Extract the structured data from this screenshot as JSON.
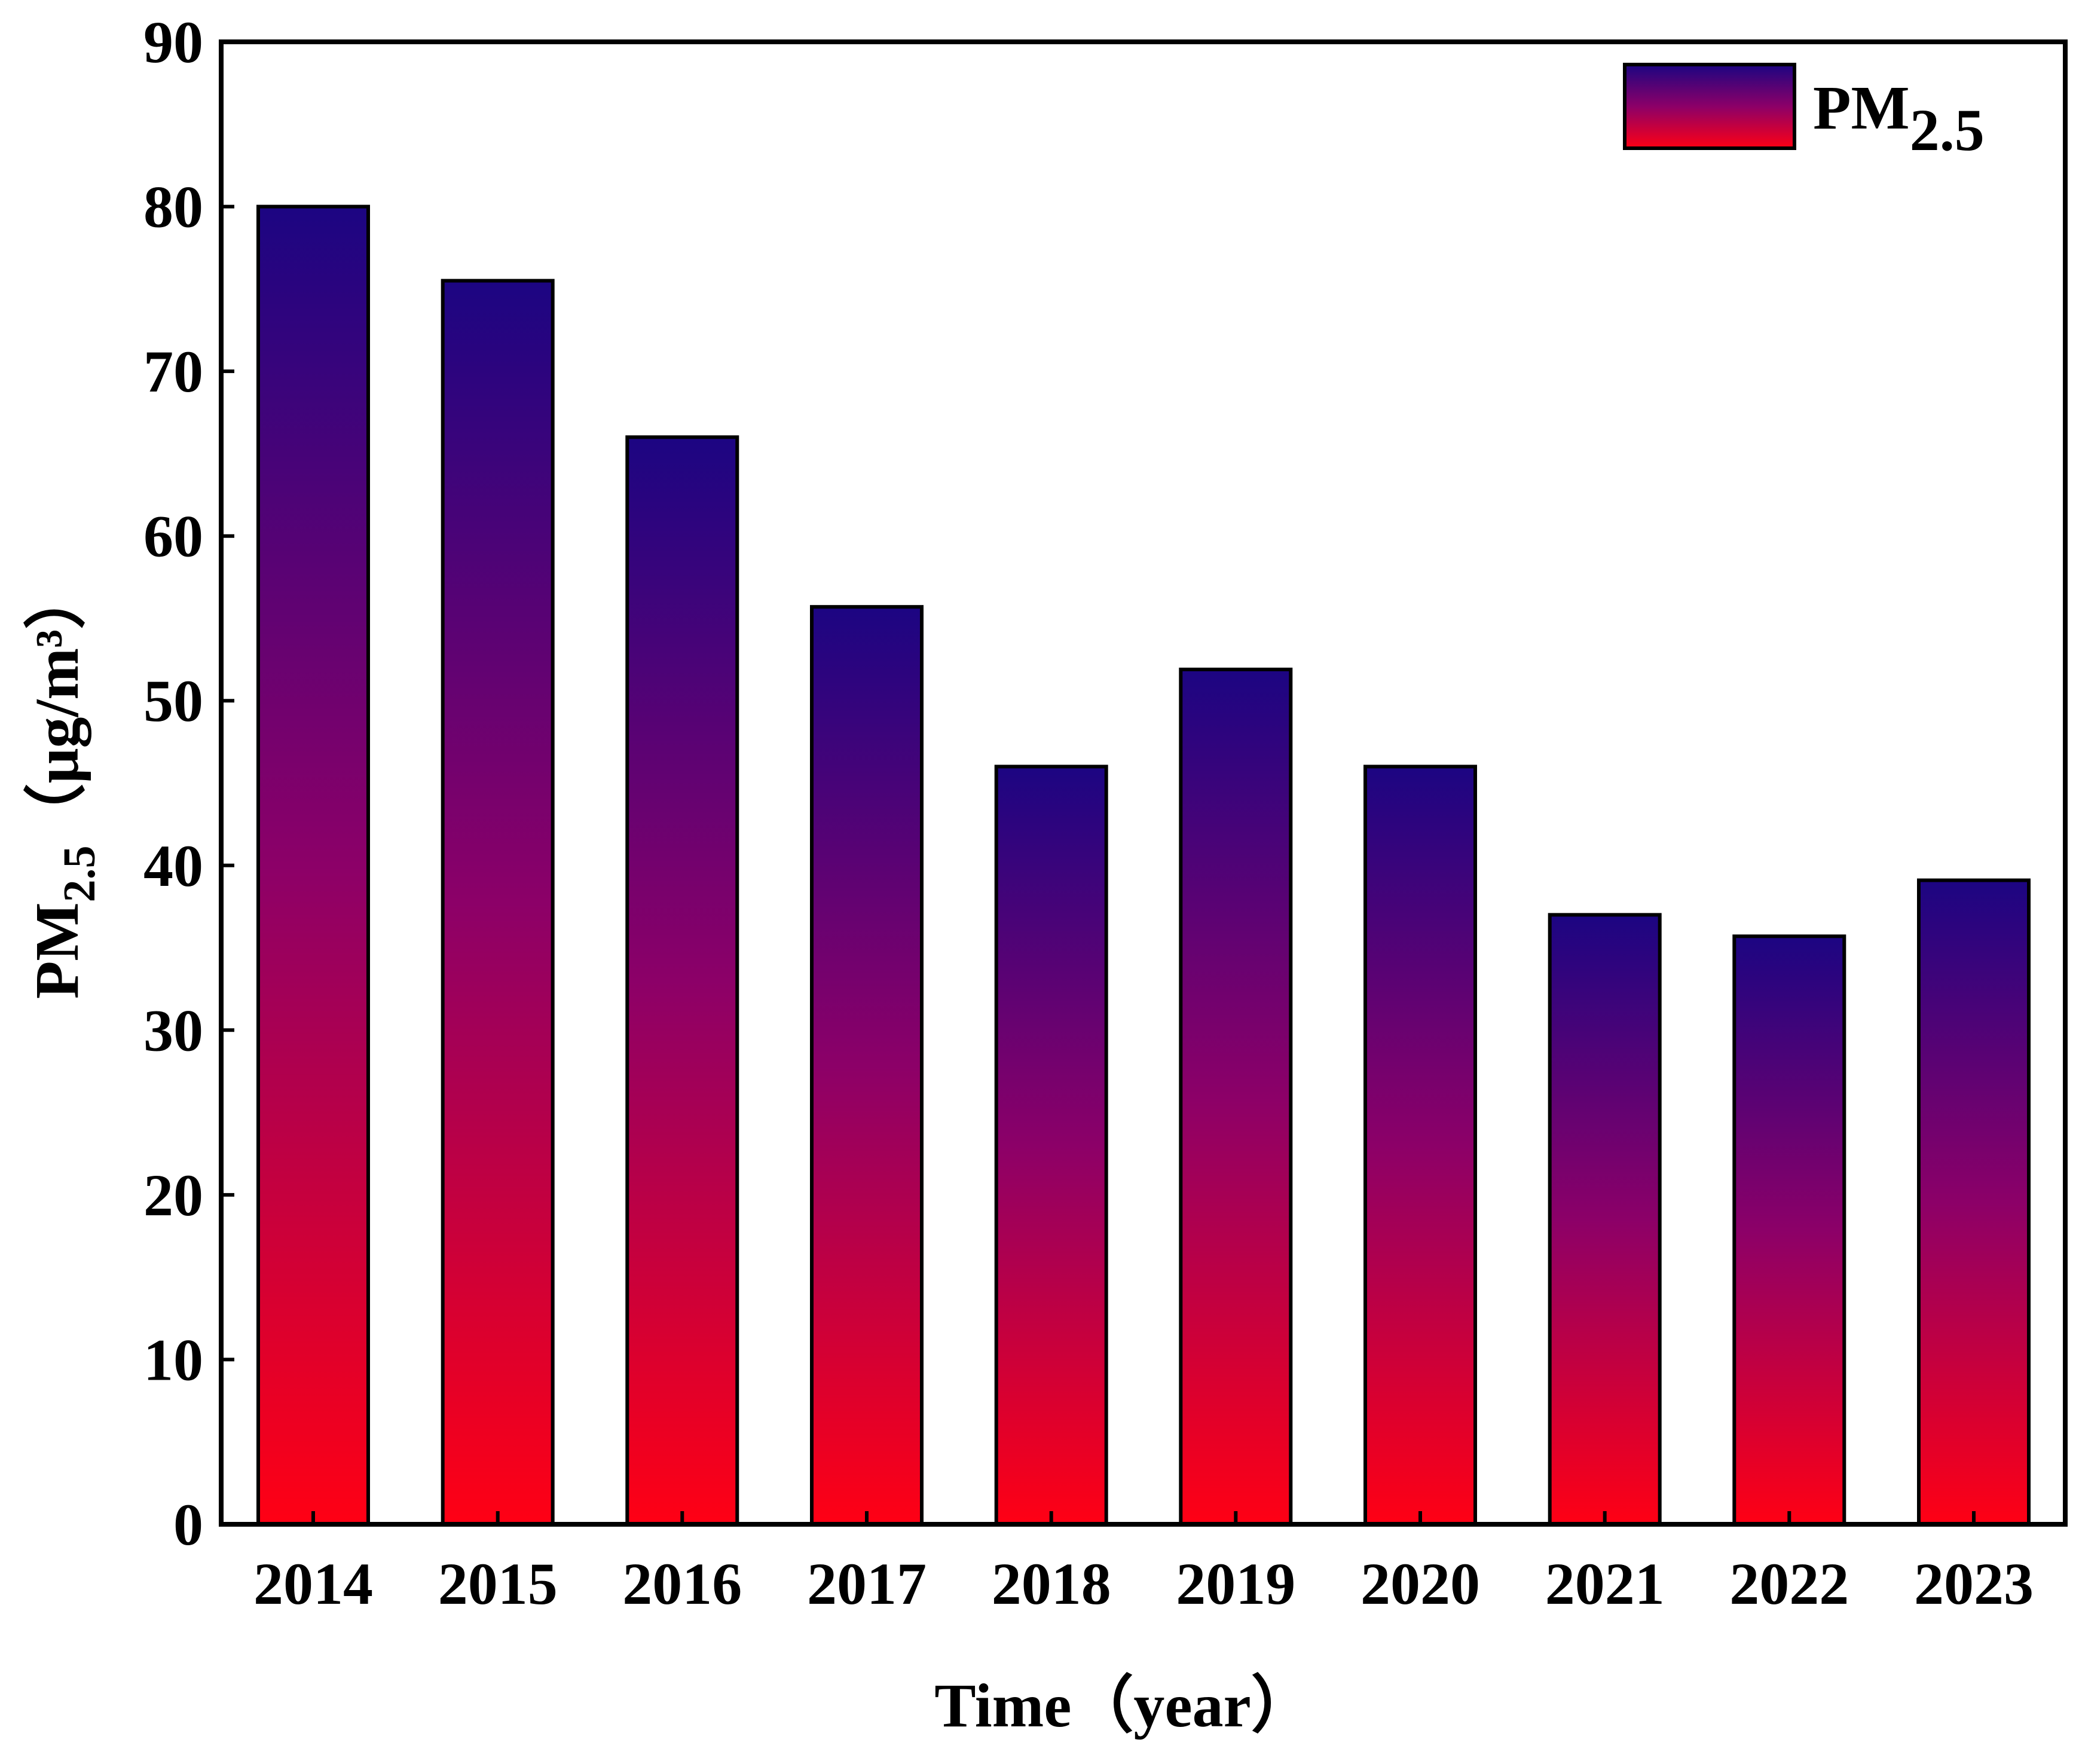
{
  "chart_data": {
    "type": "bar",
    "categories": [
      "2014",
      "2015",
      "2016",
      "2017",
      "2018",
      "2019",
      "2020",
      "2021",
      "2022",
      "2023"
    ],
    "series": [
      {
        "name": "PM2.5",
        "values": [
          80,
          75.5,
          66,
          55.7,
          46,
          51.9,
          46,
          37,
          35.7,
          39.1
        ]
      }
    ],
    "xlabel": "Time（year）",
    "ylabel": "PM2.5（μg/m³）",
    "ylim": [
      0,
      90
    ],
    "yticks": [
      "0",
      "10",
      "20",
      "30",
      "40",
      "50",
      "60",
      "70",
      "80",
      "90"
    ],
    "grid": false,
    "legend": {
      "position": "top-right",
      "label_main": "PM",
      "label_sub": "2.5"
    },
    "colors": {
      "bar_top": "#1c0582",
      "bar_bottom": "#ff0014",
      "outline": "#000000"
    }
  },
  "labels": {
    "xlabel": "Time（year）",
    "ylabel_main": "PM",
    "ylabel_sub": "2.5",
    "ylabel_unit": "（μg/m³）"
  }
}
